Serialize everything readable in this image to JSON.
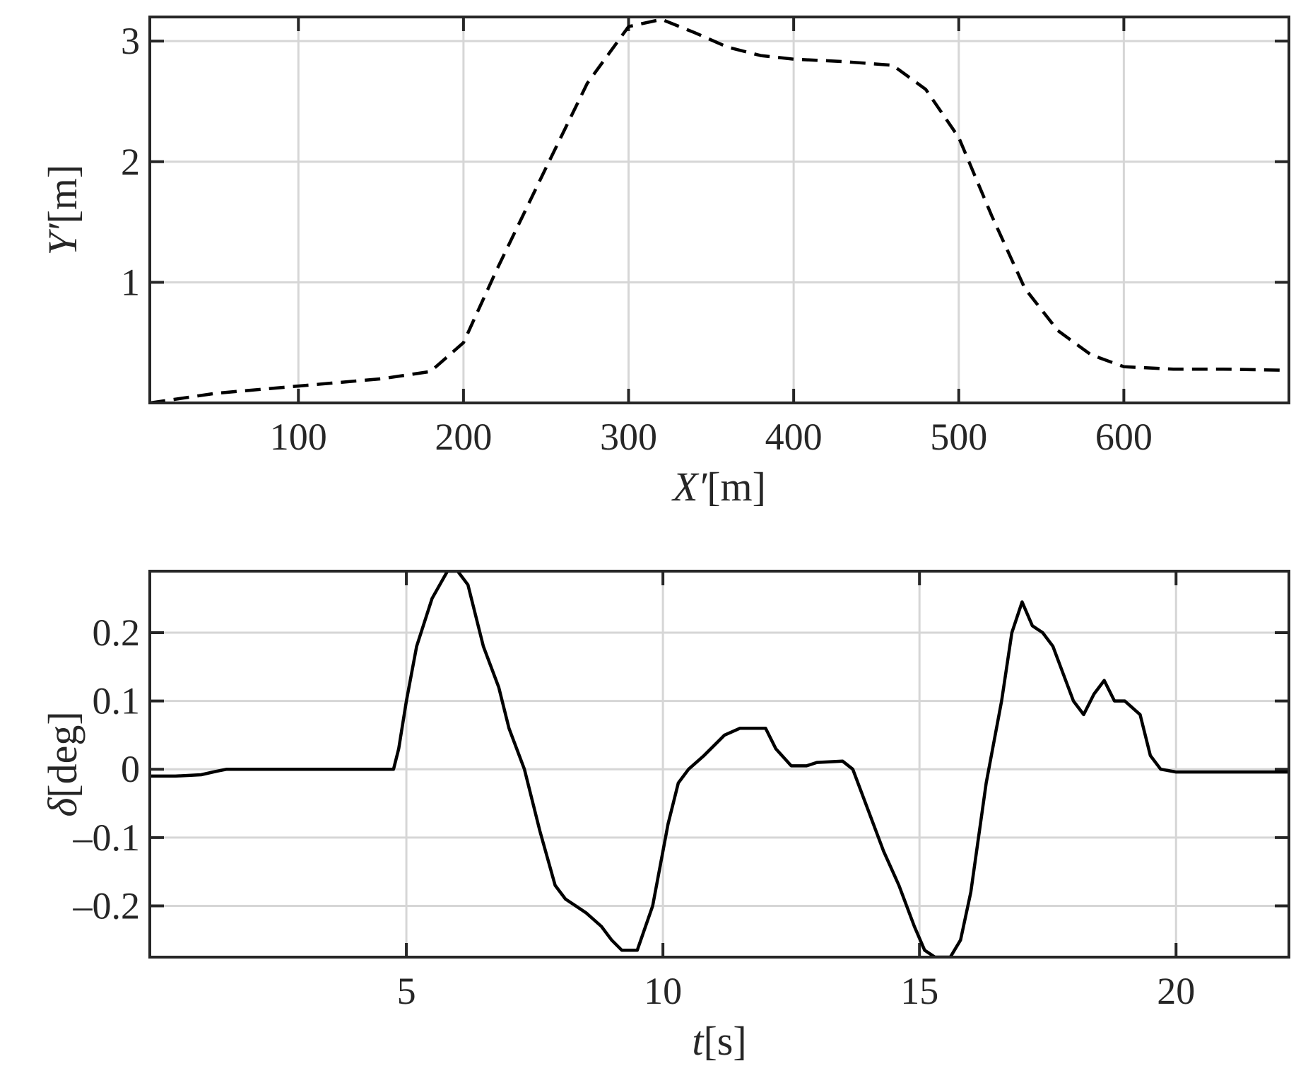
{
  "chart_data": [
    {
      "type": "line",
      "xlabel": "X′[m]",
      "ylabel": "Y′[m]",
      "xlim": [
        10,
        700
      ],
      "ylim": [
        0,
        3.2
      ],
      "xticks": [
        100,
        200,
        300,
        400,
        500,
        600
      ],
      "yticks": [
        1,
        2,
        3
      ],
      "xtick_labels": [
        "100",
        "200",
        "300",
        "400",
        "500",
        "600"
      ],
      "ytick_labels": [
        "1",
        "2",
        "3"
      ],
      "grid": true,
      "line_style": "dashed",
      "line_color": "#000000",
      "series": [
        {
          "x": [
            10,
            50,
            100,
            150,
            180,
            200,
            220,
            250,
            275,
            300,
            320,
            340,
            360,
            380,
            400,
            430,
            460,
            480,
            500,
            520,
            540,
            560,
            580,
            600,
            630,
            660,
            700
          ],
          "y": [
            0.0,
            0.08,
            0.14,
            0.2,
            0.26,
            0.5,
            1.1,
            1.95,
            2.65,
            3.12,
            3.18,
            3.07,
            2.95,
            2.88,
            2.85,
            2.83,
            2.8,
            2.6,
            2.2,
            1.55,
            0.95,
            0.6,
            0.4,
            0.3,
            0.28,
            0.28,
            0.27
          ]
        }
      ]
    },
    {
      "type": "line",
      "xlabel": "t[s]",
      "ylabel": "δ[deg]",
      "xlim": [
        0,
        22.2
      ],
      "ylim": [
        -0.275,
        0.29
      ],
      "xticks": [
        5,
        10,
        15,
        20
      ],
      "yticks": [
        0.2,
        0.1,
        0,
        -0.1,
        -0.2
      ],
      "xtick_labels": [
        "5",
        "10",
        "15",
        "20"
      ],
      "ytick_labels": [
        "0.2",
        "0.1",
        "0",
        "–0.1",
        "–0.2"
      ],
      "grid": true,
      "line_style": "solid",
      "line_color": "#000000",
      "series": [
        {
          "x": [
            0,
            0.5,
            1.0,
            1.3,
            1.5,
            4.75,
            4.85,
            5.0,
            5.2,
            5.5,
            5.8,
            6.0,
            6.2,
            6.5,
            6.8,
            7.0,
            7.3,
            7.6,
            7.9,
            8.1,
            8.3,
            8.5,
            8.8,
            9.0,
            9.2,
            9.5,
            9.8,
            10.1,
            10.3,
            10.5,
            10.8,
            11.2,
            11.5,
            12.0,
            12.2,
            12.5,
            12.8,
            13.0,
            13.5,
            13.7,
            14.0,
            14.3,
            14.6,
            14.9,
            15.1,
            15.3,
            15.6,
            15.8,
            16.0,
            16.3,
            16.6,
            16.8,
            17.0,
            17.2,
            17.4,
            17.6,
            17.8,
            18.0,
            18.2,
            18.4,
            18.6,
            18.8,
            19.0,
            19.3,
            19.5,
            19.7,
            20.0,
            21.0,
            22.2
          ],
          "y": [
            -0.01,
            -0.01,
            -0.008,
            -0.003,
            0.0,
            0.0,
            0.03,
            0.1,
            0.18,
            0.25,
            0.29,
            0.29,
            0.27,
            0.18,
            0.12,
            0.06,
            0.0,
            -0.09,
            -0.17,
            -0.19,
            -0.2,
            -0.21,
            -0.23,
            -0.25,
            -0.265,
            -0.265,
            -0.2,
            -0.08,
            -0.02,
            0.0,
            0.02,
            0.05,
            0.06,
            0.06,
            0.03,
            0.005,
            0.005,
            0.01,
            0.012,
            0.0,
            -0.06,
            -0.12,
            -0.17,
            -0.23,
            -0.265,
            -0.275,
            -0.275,
            -0.25,
            -0.18,
            -0.02,
            0.1,
            0.2,
            0.245,
            0.21,
            0.2,
            0.18,
            0.14,
            0.1,
            0.08,
            0.11,
            0.13,
            0.1,
            0.1,
            0.08,
            0.02,
            0.0,
            -0.004,
            -0.004,
            -0.004
          ]
        }
      ]
    }
  ]
}
